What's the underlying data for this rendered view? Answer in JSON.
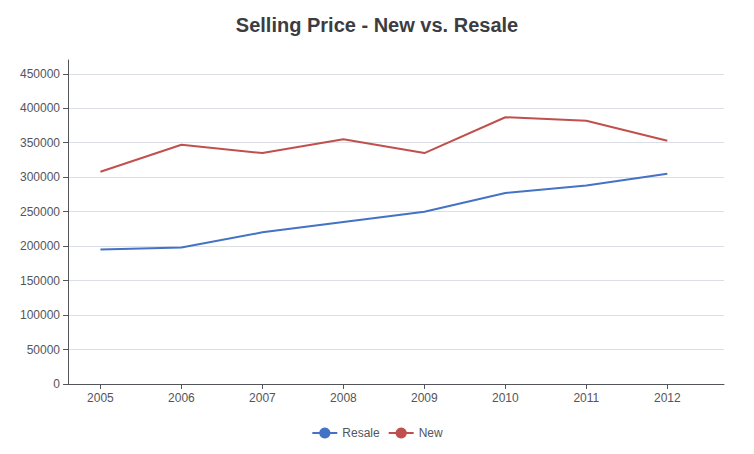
{
  "chart_data": {
    "type": "line",
    "title": "Selling Price - New vs. Resale",
    "x": [
      2005,
      2006,
      2007,
      2008,
      2009,
      2010,
      2011,
      2012
    ],
    "series": [
      {
        "name": "Resale",
        "color": "#4472C4",
        "values": [
          195000,
          198000,
          220000,
          235000,
          250000,
          277000,
          288000,
          305000
        ]
      },
      {
        "name": "New",
        "color": "#C0504D",
        "values": [
          308000,
          347000,
          335000,
          355000,
          335000,
          387000,
          382000,
          353000
        ]
      }
    ],
    "xlim": [
      2004.6,
      2012.7
    ],
    "xticks": [
      2005,
      2006,
      2007,
      2008,
      2009,
      2010,
      2011,
      2012
    ],
    "ylim": [
      0,
      470000
    ],
    "yticks": [
      0,
      50000,
      100000,
      150000,
      200000,
      250000,
      300000,
      350000,
      400000,
      450000
    ],
    "grid": true,
    "legend": "bottom"
  }
}
